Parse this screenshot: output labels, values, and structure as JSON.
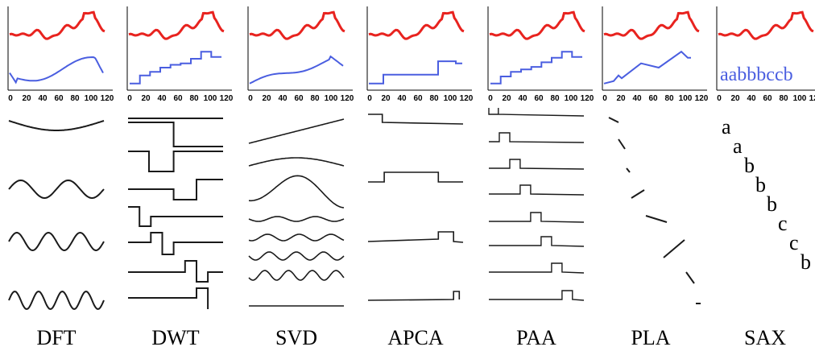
{
  "colors": {
    "original": "#e8231f",
    "approximation": "#4a5ee0",
    "basis": "#1a1a1a",
    "axis": "#000000"
  },
  "x_ticks": [
    "0",
    "20",
    "40",
    "60",
    "80",
    "100",
    "120"
  ],
  "panels": [
    {
      "method": "DFT"
    },
    {
      "method": "DWT"
    },
    {
      "method": "SVD"
    },
    {
      "method": "APCA"
    },
    {
      "method": "PAA"
    },
    {
      "method": "PLA"
    },
    {
      "method": "SAX",
      "symbols": "aabbbccb",
      "letters": [
        "a",
        "a",
        "b",
        "b",
        "b",
        "c",
        "c",
        "b"
      ]
    }
  ]
}
